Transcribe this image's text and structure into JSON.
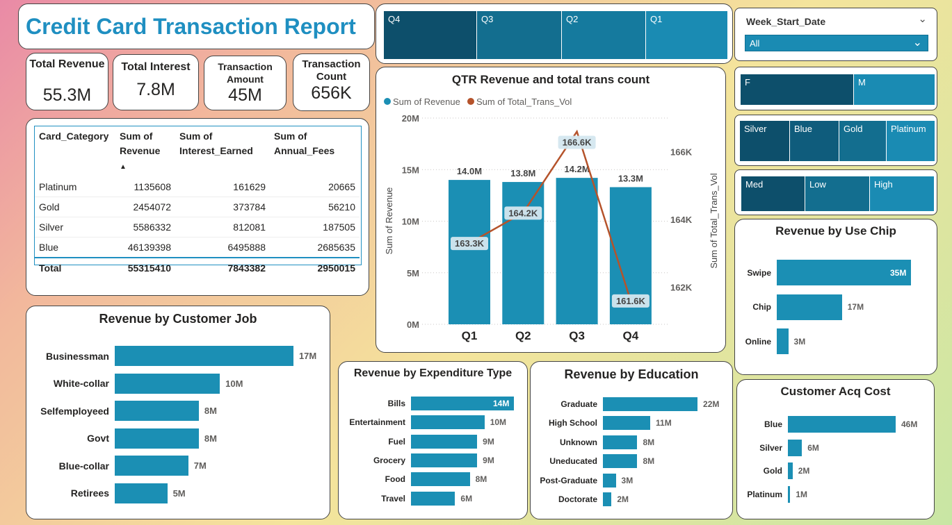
{
  "report_title": "Credit Card Transaction Report",
  "kpis": [
    {
      "label": "Total Revenue",
      "value": "55.3M"
    },
    {
      "label": "Total Interest",
      "value": "7.8M"
    },
    {
      "label": "Transaction Amount",
      "value": "45M"
    },
    {
      "label": "Transaction Count",
      "value": "656K"
    }
  ],
  "quarter_slicer": [
    "Q4",
    "Q3",
    "Q2",
    "Q1"
  ],
  "week_slicer": {
    "label": "Week_Start_Date",
    "value": "All"
  },
  "gender_slicer": [
    "F",
    "M"
  ],
  "card_slicer": [
    "Silver",
    "Blue",
    "Gold",
    "Platinum"
  ],
  "income_slicer": [
    "Med",
    "Low",
    "High"
  ],
  "table": {
    "headers": [
      "Card_Category",
      "Sum of Revenue",
      "Sum of Interest_Earned",
      "Sum of Annual_Fees"
    ],
    "rows": [
      [
        "Platinum",
        "1135608",
        "161629",
        "20665"
      ],
      [
        "Gold",
        "2454072",
        "373784",
        "56210"
      ],
      [
        "Silver",
        "5586332",
        "812081",
        "187505"
      ],
      [
        "Blue",
        "46139398",
        "6495888",
        "2685635"
      ]
    ],
    "total": [
      "Total",
      "55315410",
      "7843382",
      "2950015"
    ]
  },
  "colors": {
    "accent": "#1f8fc1",
    "bar": "#1b8fb4",
    "line": "#b5532b",
    "slicer_dark": "#0d4f6b",
    "slicer_mid": "#136e8f",
    "slicer_light": "#1a8bb3"
  },
  "chart_data": [
    {
      "type": "bar",
      "title": "QTR Revenue and total trans count",
      "legend": [
        "Sum of Revenue",
        "Sum of Total_Trans_Vol"
      ],
      "categories": [
        "Q1",
        "Q2",
        "Q3",
        "Q4"
      ],
      "series": [
        {
          "name": "Sum of Revenue",
          "values": [
            14.0,
            13.8,
            14.2,
            13.3
          ],
          "labels": [
            "14.0M",
            "13.8M",
            "14.2M",
            "13.3M"
          ]
        },
        {
          "name": "Sum of Total_Trans_Vol",
          "values": [
            163.3,
            164.2,
            166.6,
            161.6
          ],
          "labels": [
            "163.3K",
            "164.2K",
            "166.6K",
            "161.6K"
          ]
        }
      ],
      "ylabel": "Sum of Revenue",
      "y2label": "Sum of Total_Trans_Vol",
      "yticks": [
        "0M",
        "5M",
        "10M",
        "15M",
        "20M"
      ],
      "ylim": [
        0,
        20
      ],
      "y2ticks": [
        "162K",
        "164K",
        "166K"
      ],
      "y2lim": [
        160.9,
        167.0
      ],
      "legend_position": "top-left"
    },
    {
      "type": "bar",
      "title": "Revenue by Customer Job",
      "categories": [
        "Businessman",
        "White-collar",
        "Selfemployeed",
        "Govt",
        "Blue-collar",
        "Retirees"
      ],
      "values": [
        17,
        10,
        8,
        8,
        7,
        5
      ],
      "labels": [
        "17M",
        "10M",
        "8M",
        "8M",
        "7M",
        "5M"
      ],
      "xlim": [
        0,
        17.4
      ]
    },
    {
      "type": "bar",
      "title": "Revenue by Expenditure Type",
      "categories": [
        "Bills",
        "Entertainment",
        "Fuel",
        "Grocery",
        "Food",
        "Travel"
      ],
      "values": [
        14,
        10,
        9,
        9,
        8,
        6
      ],
      "labels": [
        "14M",
        "10M",
        "9M",
        "9M",
        "8M",
        "6M"
      ],
      "xlim": [
        0,
        14
      ]
    },
    {
      "type": "bar",
      "title": "Revenue by Education",
      "categories": [
        "Graduate",
        "High School",
        "Unknown",
        "Uneducated",
        "Post-Graduate",
        "Doctorate"
      ],
      "values": [
        22,
        11,
        8,
        8,
        3,
        2
      ],
      "labels": [
        "22M",
        "11M",
        "8M",
        "8M",
        "3M",
        "2M"
      ],
      "xlim": [
        0,
        22.8
      ]
    },
    {
      "type": "bar",
      "title": "Revenue by Use Chip",
      "categories": [
        "Swipe",
        "Chip",
        "Online"
      ],
      "values": [
        35,
        17,
        3
      ],
      "labels": [
        "35M",
        "17M",
        "3M"
      ],
      "xlim": [
        0,
        35
      ]
    },
    {
      "type": "bar",
      "title": "Customer Acq Cost",
      "categories": [
        "Blue",
        "Silver",
        "Gold",
        "Platinum"
      ],
      "values": [
        46,
        6,
        2,
        1
      ],
      "labels": [
        "46M",
        "6M",
        "2M",
        "1M"
      ],
      "xlim": [
        0,
        46
      ]
    }
  ]
}
